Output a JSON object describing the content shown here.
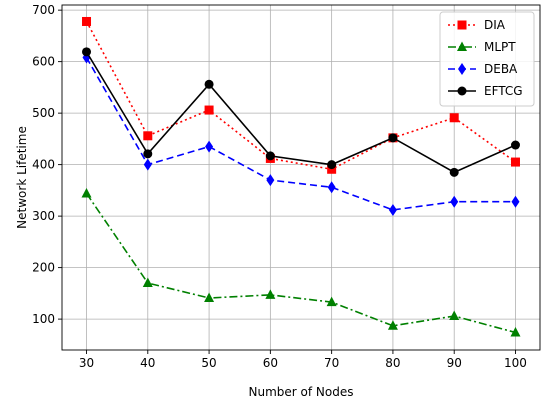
{
  "chart_data": {
    "type": "line",
    "title": "",
    "xlabel": "Number of Nodes",
    "ylabel": "Network Lifetime",
    "x": [
      30,
      40,
      50,
      60,
      70,
      80,
      90,
      100
    ],
    "xlim": [
      26,
      104
    ],
    "ylim": [
      40,
      710
    ],
    "xticks": [
      30,
      40,
      50,
      60,
      70,
      80,
      90,
      100
    ],
    "yticks": [
      100,
      200,
      300,
      400,
      500,
      600,
      700
    ],
    "grid": true,
    "legend_position": "top-right",
    "series": [
      {
        "name": "DIA",
        "color": "#ff0000",
        "marker": "square",
        "line_style": "dotted",
        "values": [
          678,
          456,
          506,
          412,
          391,
          452,
          491,
          405
        ]
      },
      {
        "name": "MLPT",
        "color": "#008000",
        "marker": "triangle",
        "line_style": "dash-dot",
        "values": [
          344,
          170,
          141,
          147,
          133,
          87,
          106,
          74
        ]
      },
      {
        "name": "DEBA",
        "color": "#0000ff",
        "marker": "diamond",
        "line_style": "dashed",
        "values": [
          608,
          400,
          435,
          370,
          356,
          312,
          328,
          328
        ]
      },
      {
        "name": "EFTCG",
        "color": "#000000",
        "marker": "circle",
        "line_style": "solid",
        "values": [
          619,
          421,
          556,
          417,
          400,
          452,
          385,
          438
        ]
      }
    ]
  }
}
